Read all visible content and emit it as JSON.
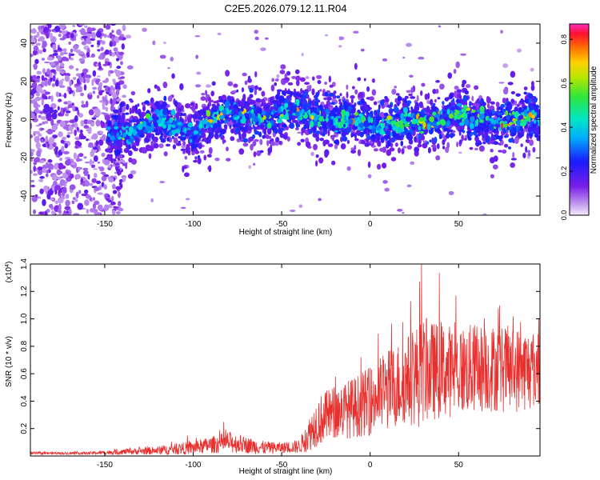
{
  "figure_title": "C2E5.2026.079.12.11.R04",
  "chart_data": [
    {
      "type": "heatmap",
      "name": "spectrogram",
      "title": "C2E5.2026.079.12.11.R04",
      "xlabel": "Height of straight line (km)",
      "ylabel": "Frequency (Hz)",
      "xlim": [
        -192,
        96
      ],
      "ylim": [
        -50,
        50
      ],
      "x_ticks": [
        -150,
        -100,
        -50,
        0,
        50
      ],
      "y_ticks": [
        -40,
        -20,
        0,
        20,
        40
      ],
      "description_points": {
        "noise_region_x": [
          -192,
          -145
        ],
        "signal_start_x": -148,
        "ridge_center": [
          [
            -148,
            -8
          ],
          [
            -130,
            -6
          ],
          [
            -120,
            1
          ],
          [
            -110,
            -3
          ],
          [
            -100,
            -8
          ],
          [
            -90,
            0
          ],
          [
            -80,
            3
          ],
          [
            -70,
            2
          ],
          [
            -60,
            0
          ],
          [
            -50,
            4
          ],
          [
            -40,
            5
          ],
          [
            -30,
            2
          ],
          [
            -20,
            0
          ],
          [
            -10,
            0
          ],
          [
            0,
            -2
          ],
          [
            10,
            -3
          ],
          [
            20,
            0
          ],
          [
            30,
            -2
          ],
          [
            40,
            0
          ],
          [
            50,
            4
          ],
          [
            60,
            0
          ],
          [
            70,
            -2
          ],
          [
            80,
            0
          ],
          [
            90,
            1
          ],
          [
            96,
            0
          ]
        ]
      },
      "colorbar": {
        "label": "Normalized spectral amplitude",
        "range": [
          0.0,
          0.87
        ],
        "ticks": [
          0.0,
          0.2,
          0.4,
          0.6,
          0.8
        ],
        "tick_labels": [
          "0.0",
          "0.2",
          "0.4",
          "0.6",
          "0.8"
        ]
      }
    },
    {
      "type": "line",
      "name": "snr",
      "xlabel": "Height of straight line (km)",
      "ylabel": "SNR (10 * v/v)",
      "y_exponent_label": "(x10",
      "y_exponent_power": "4",
      "xlim": [
        -192,
        96
      ],
      "ylim": [
        0,
        1.4
      ],
      "x_ticks": [
        -150,
        -100,
        -50,
        0,
        50
      ],
      "y_ticks": [
        0.2,
        0.4,
        0.6,
        0.8,
        1.0,
        1.2,
        1.4
      ],
      "y_tick_labels": [
        "0.2",
        "0.4",
        "0.6",
        "0.8",
        "1.0",
        "1.2",
        "1.4"
      ],
      "color": "#e8302e",
      "envelope": {
        "x": [
          -192,
          -160,
          -140,
          -120,
          -100,
          -90,
          -80,
          -70,
          -60,
          -50,
          -40,
          -35,
          -30,
          -20,
          -10,
          0,
          10,
          20,
          29,
          30,
          40,
          50,
          60,
          70,
          80,
          90,
          96
        ],
        "mean": [
          0.02,
          0.02,
          0.03,
          0.04,
          0.06,
          0.08,
          0.1,
          0.08,
          0.06,
          0.06,
          0.07,
          0.15,
          0.25,
          0.32,
          0.35,
          0.4,
          0.48,
          0.55,
          0.6,
          0.62,
          0.62,
          0.62,
          0.64,
          0.64,
          0.63,
          0.63,
          0.65
        ],
        "amp": [
          0.01,
          0.01,
          0.02,
          0.03,
          0.05,
          0.06,
          0.08,
          0.06,
          0.05,
          0.04,
          0.05,
          0.12,
          0.18,
          0.2,
          0.22,
          0.25,
          0.3,
          0.32,
          0.4,
          0.38,
          0.35,
          0.33,
          0.33,
          0.32,
          0.32,
          0.3,
          0.3
        ]
      },
      "peak": {
        "x": 29,
        "y": 1.4
      }
    }
  ]
}
